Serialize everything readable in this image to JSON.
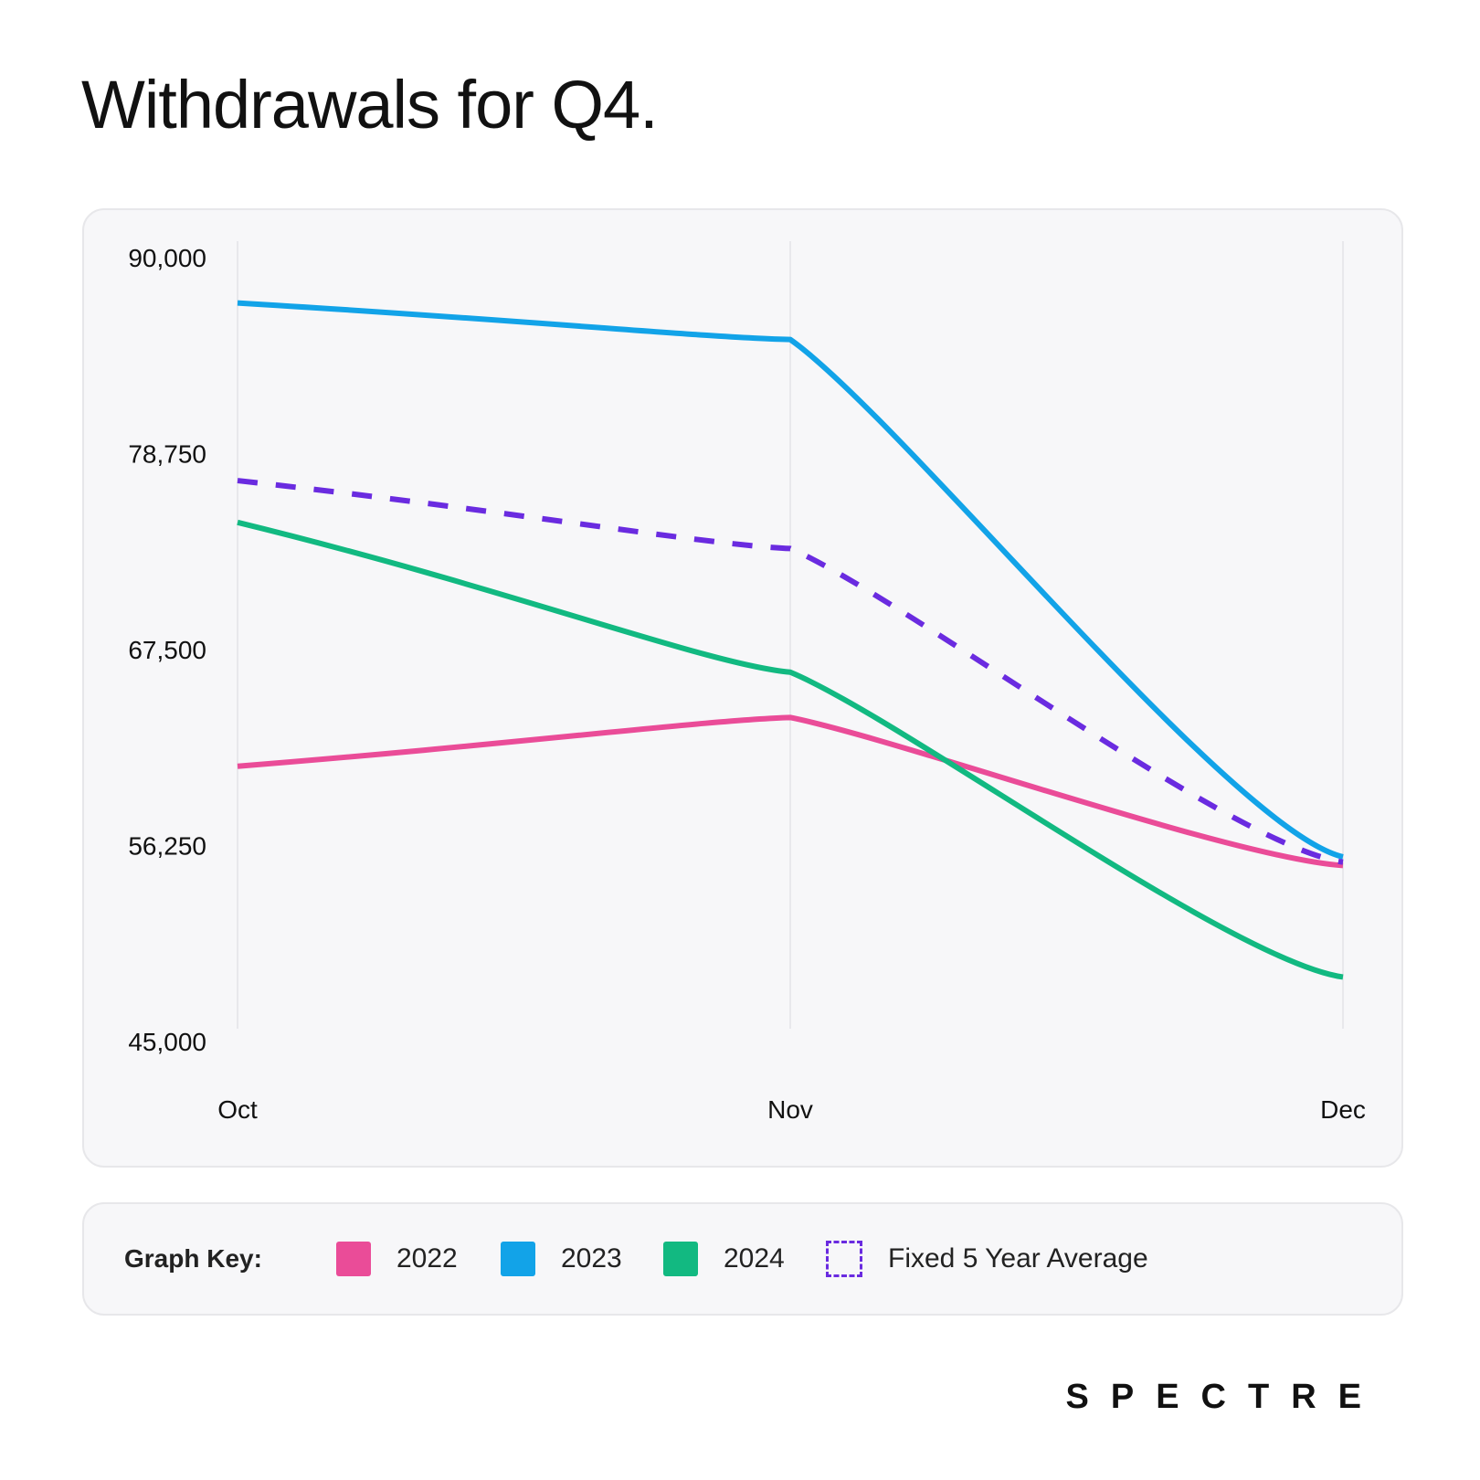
{
  "title": "Withdrawals for Q4.",
  "chart_data": {
    "type": "line",
    "categories": [
      "Oct",
      "Nov",
      "Dec"
    ],
    "ylim": [
      45000,
      90000
    ],
    "y_ticks": [
      {
        "value": 90000,
        "label": "90,000"
      },
      {
        "value": 78750,
        "label": "78,750"
      },
      {
        "value": 67500,
        "label": "67,500"
      },
      {
        "value": 56250,
        "label": "56,250"
      },
      {
        "value": 45000,
        "label": "45,000"
      }
    ],
    "grid": "vertical",
    "series": [
      {
        "name": "2022",
        "color": "#ea4c98",
        "style": "solid",
        "values": [
          60800,
          63600,
          55100
        ]
      },
      {
        "name": "2023",
        "color": "#12a3e8",
        "style": "solid",
        "values": [
          87400,
          85300,
          55600
        ]
      },
      {
        "name": "2024",
        "color": "#12b981",
        "style": "solid",
        "values": [
          74800,
          66200,
          48700
        ]
      },
      {
        "name": "Fixed 5 Year Average",
        "color": "#6a2be0",
        "style": "dashed",
        "values": [
          77200,
          73300,
          55300
        ]
      }
    ]
  },
  "legend": {
    "title": "Graph Key:"
  },
  "brand": "SPECTRE"
}
